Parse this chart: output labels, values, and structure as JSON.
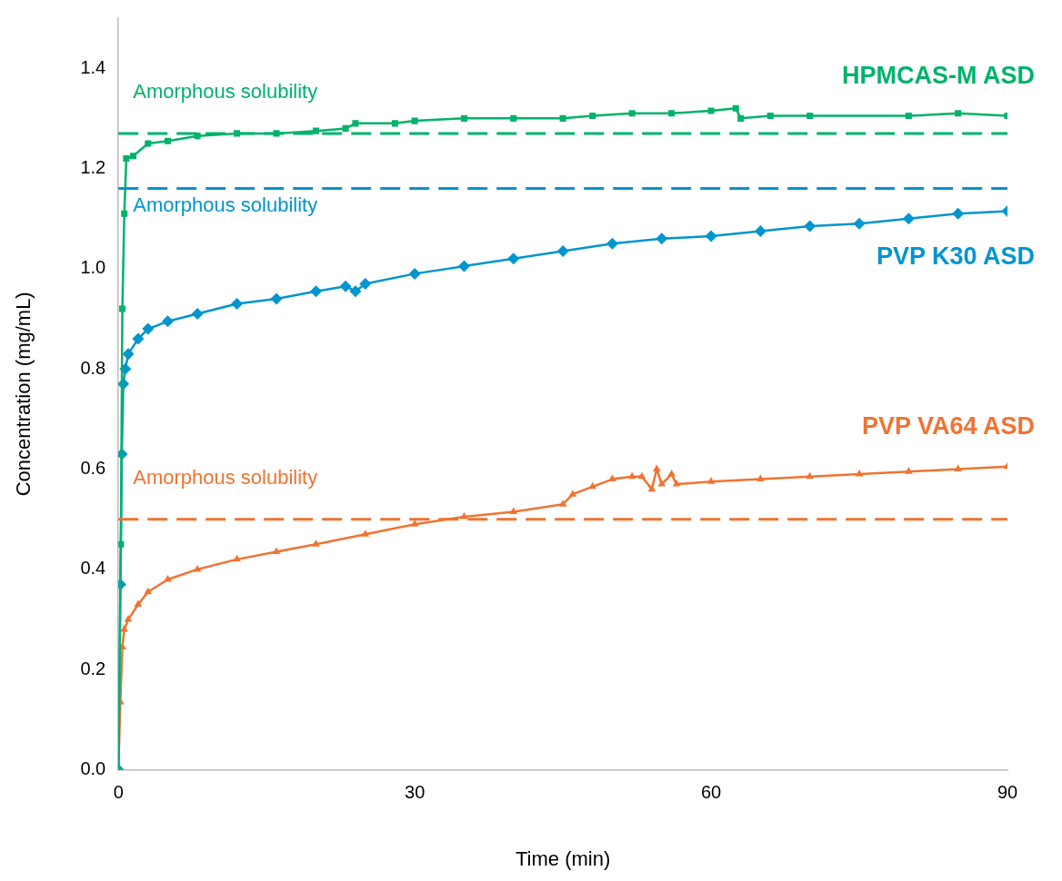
{
  "chart_data": {
    "type": "line",
    "xlabel": "Time (min)",
    "ylabel": "Concentration (mg/mL)",
    "xlim": [
      0,
      90
    ],
    "xticks": [
      0,
      30,
      60,
      90
    ],
    "ylim": [
      0,
      1.5
    ],
    "yticks": [
      {
        "value": 0,
        "label": "0.0"
      },
      {
        "value": 0.2,
        "label": "0.2"
      },
      {
        "value": 0.4,
        "label": "0.4"
      },
      {
        "value": 0.6,
        "label": "0.6"
      },
      {
        "value": 0.8,
        "label": "0.8"
      },
      {
        "value": 1,
        "label": "1.0"
      },
      {
        "value": 1.2,
        "label": "1.2"
      },
      {
        "value": 1.4,
        "label": "1.4"
      }
    ],
    "series": [
      {
        "name": "HPMCAS-M ASD",
        "color": "#00b26b",
        "marker": "square",
        "x": [
          0,
          0.25,
          0.4,
          0.6,
          0.8,
          1.5,
          3,
          5,
          8,
          12,
          16,
          20,
          23,
          24,
          28,
          30,
          35,
          40,
          45,
          48,
          52,
          56,
          60,
          62.5,
          63,
          66,
          70,
          80,
          85,
          90
        ],
        "values": [
          0,
          0.45,
          0.92,
          1.11,
          1.22,
          1.225,
          1.25,
          1.255,
          1.265,
          1.27,
          1.27,
          1.275,
          1.28,
          1.29,
          1.29,
          1.295,
          1.3,
          1.3,
          1.3,
          1.305,
          1.31,
          1.31,
          1.315,
          1.32,
          1.3,
          1.305,
          1.305,
          1.305,
          1.31,
          1.305
        ]
      },
      {
        "name": "PVP K30 ASD",
        "color": "#0095cf",
        "marker": "diamond",
        "x": [
          0,
          0.2,
          0.35,
          0.5,
          0.7,
          1,
          2,
          3,
          5,
          8,
          12,
          16,
          20,
          23,
          24,
          25,
          30,
          35,
          40,
          45,
          50,
          55,
          60,
          65,
          70,
          75,
          80,
          85,
          90
        ],
        "values": [
          0,
          0.37,
          0.63,
          0.77,
          0.8,
          0.83,
          0.86,
          0.88,
          0.895,
          0.91,
          0.93,
          0.94,
          0.955,
          0.965,
          0.955,
          0.97,
          0.99,
          1.005,
          1.02,
          1.035,
          1.05,
          1.06,
          1.065,
          1.075,
          1.085,
          1.09,
          1.1,
          1.11,
          1.115
        ]
      },
      {
        "name": "PVP VA64 ASD",
        "color": "#f07331",
        "marker": "triangle",
        "x": [
          0,
          0.2,
          0.4,
          0.6,
          1,
          2,
          3,
          5,
          8,
          12,
          16,
          20,
          25,
          30,
          35,
          40,
          45,
          46,
          48,
          50,
          52,
          53,
          54,
          54.5,
          55,
          56,
          56.5,
          60,
          65,
          70,
          75,
          80,
          85,
          90
        ],
        "values": [
          0,
          0.135,
          0.245,
          0.28,
          0.3,
          0.33,
          0.355,
          0.38,
          0.4,
          0.42,
          0.435,
          0.45,
          0.47,
          0.49,
          0.505,
          0.515,
          0.53,
          0.55,
          0.565,
          0.58,
          0.585,
          0.585,
          0.56,
          0.6,
          0.57,
          0.59,
          0.57,
          0.575,
          0.58,
          0.585,
          0.59,
          0.595,
          0.6,
          0.605
        ]
      }
    ],
    "ref_lines": [
      {
        "axis": "y",
        "value": 1.27,
        "label": "Amorphous solubility",
        "color": "#00b26b",
        "line_style": "dashed"
      },
      {
        "axis": "y",
        "value": 1.16,
        "label": "Amorphous solubility",
        "color": "#0095cf",
        "line_style": "dashed"
      },
      {
        "axis": "y",
        "value": 0.5,
        "label": "Amorphous solubility",
        "color": "#f07331",
        "line_style": "dashed"
      }
    ]
  }
}
